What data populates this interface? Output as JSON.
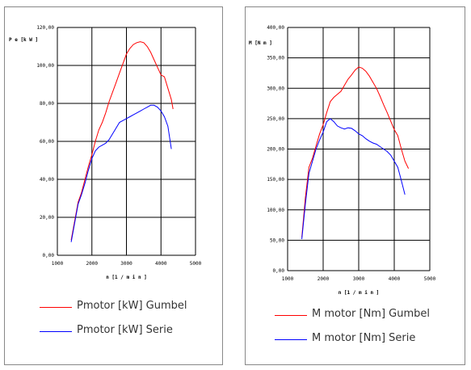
{
  "chart_data": [
    {
      "type": "line",
      "ylabel": "P e  [k W ]",
      "xlabel": "n  [1 / m i n ]",
      "xlim": [
        1000,
        5000
      ],
      "ylim": [
        0,
        120
      ],
      "xticks": [
        1000,
        2000,
        3000,
        4000,
        5000
      ],
      "yticks": [
        "0,00",
        "20,00",
        "40,00",
        "60,00",
        "80,00",
        "100,00",
        "120,00"
      ],
      "grid": true,
      "legend_position": "below",
      "series": [
        {
          "name": "Pmotor [kW] Gumbel",
          "color": "#ff0000",
          "points": [
            [
              1400,
              8
            ],
            [
              1500,
              18
            ],
            [
              1600,
              28
            ],
            [
              1700,
              33
            ],
            [
              1800,
              40
            ],
            [
              1900,
              47
            ],
            [
              2000,
              53
            ],
            [
              2100,
              60
            ],
            [
              2200,
              66
            ],
            [
              2300,
              70
            ],
            [
              2400,
              75
            ],
            [
              2500,
              81
            ],
            [
              2600,
              86
            ],
            [
              2700,
              91
            ],
            [
              2800,
              96
            ],
            [
              2900,
              101
            ],
            [
              3000,
              106
            ],
            [
              3100,
              109
            ],
            [
              3200,
              111
            ],
            [
              3300,
              112
            ],
            [
              3400,
              112.5
            ],
            [
              3500,
              112
            ],
            [
              3600,
              110
            ],
            [
              3700,
              107
            ],
            [
              3800,
              103
            ],
            [
              3900,
              99
            ],
            [
              4000,
              95
            ],
            [
              4100,
              94
            ],
            [
              4200,
              88
            ],
            [
              4300,
              82
            ],
            [
              4350,
              77
            ]
          ]
        },
        {
          "name": "Pmotor [kW] Serie",
          "color": "#0000ff",
          "points": [
            [
              1400,
              7
            ],
            [
              1500,
              17
            ],
            [
              1600,
              27
            ],
            [
              1700,
              32
            ],
            [
              1800,
              38
            ],
            [
              1900,
              45
            ],
            [
              2000,
              51
            ],
            [
              2100,
              55
            ],
            [
              2200,
              57
            ],
            [
              2300,
              58
            ],
            [
              2400,
              59
            ],
            [
              2500,
              61
            ],
            [
              2600,
              64
            ],
            [
              2700,
              67
            ],
            [
              2800,
              70
            ],
            [
              2900,
              71
            ],
            [
              3000,
              72
            ],
            [
              3100,
              73
            ],
            [
              3200,
              74
            ],
            [
              3300,
              75
            ],
            [
              3400,
              76
            ],
            [
              3500,
              77
            ],
            [
              3600,
              78
            ],
            [
              3700,
              79
            ],
            [
              3800,
              79
            ],
            [
              3900,
              78
            ],
            [
              4000,
              76
            ],
            [
              4100,
              73
            ],
            [
              4200,
              68
            ],
            [
              4300,
              56
            ]
          ]
        }
      ]
    },
    {
      "type": "line",
      "ylabel": "M  [N m ]",
      "xlabel": "n  [1 / m i n ]",
      "xlim": [
        1000,
        5000
      ],
      "ylim": [
        0,
        400
      ],
      "xticks": [
        1000,
        2000,
        3000,
        4000,
        5000
      ],
      "yticks": [
        "0,00",
        "50,00",
        "100,00",
        "150,00",
        "200,00",
        "250,00",
        "300,00",
        "350,00",
        "400,00"
      ],
      "grid": true,
      "legend_position": "below",
      "series": [
        {
          "name": "M motor [Nm] Gumbel",
          "color": "#ff0000",
          "points": [
            [
              1400,
              55
            ],
            [
              1500,
              120
            ],
            [
              1600,
              170
            ],
            [
              1700,
              185
            ],
            [
              1800,
              205
            ],
            [
              1900,
              225
            ],
            [
              2000,
              240
            ],
            [
              2100,
              260
            ],
            [
              2200,
              278
            ],
            [
              2300,
              285
            ],
            [
              2400,
              290
            ],
            [
              2500,
              295
            ],
            [
              2600,
              305
            ],
            [
              2700,
              315
            ],
            [
              2800,
              322
            ],
            [
              2900,
              330
            ],
            [
              3000,
              335
            ],
            [
              3100,
              333
            ],
            [
              3200,
              328
            ],
            [
              3300,
              320
            ],
            [
              3400,
              310
            ],
            [
              3500,
              300
            ],
            [
              3600,
              287
            ],
            [
              3700,
              273
            ],
            [
              3800,
              260
            ],
            [
              3900,
              246
            ],
            [
              4000,
              232
            ],
            [
              4100,
              222
            ],
            [
              4200,
              200
            ],
            [
              4300,
              180
            ],
            [
              4400,
              168
            ]
          ]
        },
        {
          "name": "M motor [Nm] Serie",
          "color": "#0000ff",
          "points": [
            [
              1400,
              52
            ],
            [
              1500,
              110
            ],
            [
              1600,
              160
            ],
            [
              1700,
              180
            ],
            [
              1800,
              200
            ],
            [
              1900,
              215
            ],
            [
              2000,
              228
            ],
            [
              2100,
              245
            ],
            [
              2200,
              250
            ],
            [
              2300,
              245
            ],
            [
              2400,
              238
            ],
            [
              2500,
              235
            ],
            [
              2600,
              233
            ],
            [
              2700,
              235
            ],
            [
              2800,
              234
            ],
            [
              2900,
              230
            ],
            [
              3000,
              225
            ],
            [
              3100,
              222
            ],
            [
              3200,
              217
            ],
            [
              3300,
              213
            ],
            [
              3400,
              210
            ],
            [
              3500,
              208
            ],
            [
              3600,
              204
            ],
            [
              3700,
              200
            ],
            [
              3800,
              196
            ],
            [
              3900,
              190
            ],
            [
              4000,
              180
            ],
            [
              4100,
              170
            ],
            [
              4200,
              148
            ],
            [
              4300,
              125
            ]
          ]
        }
      ]
    }
  ]
}
